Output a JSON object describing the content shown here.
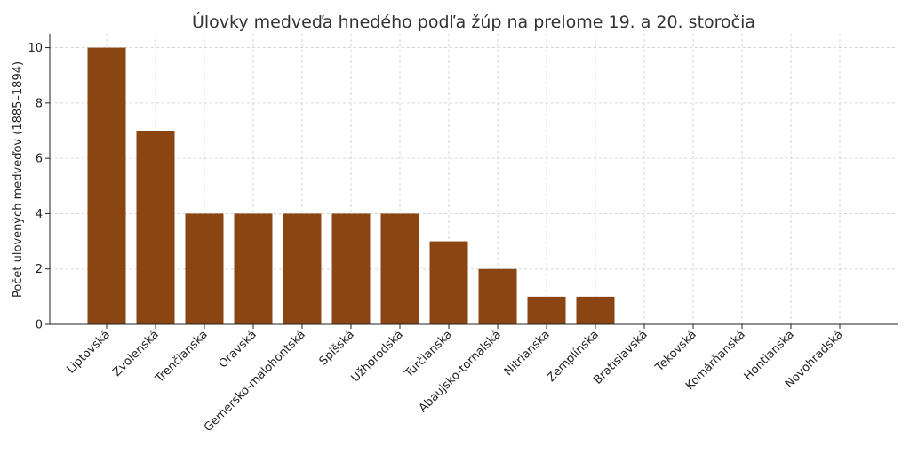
{
  "chart_data": {
    "type": "bar",
    "title": "Úlovky medveďa hnedého podľa žúp na prelome 19. a 20. storočia",
    "xlabel": "",
    "ylabel": "Počet ulovených medveďov (1885–1894)",
    "categories": [
      "Liptovská",
      "Zvolenská",
      "Trenčianska",
      "Oravská",
      "Gemersko-malohontská",
      "Spišská",
      "Užhorodská",
      "Turčianska",
      "Abaujsko-tornalská",
      "Nitrianska",
      "Zemplínska",
      "Bratislavská",
      "Tekovská",
      "Komárňanská",
      "Hontianska",
      "Novohradská"
    ],
    "values": [
      10,
      7,
      4,
      4,
      4,
      4,
      4,
      3,
      2,
      1,
      1,
      0,
      0,
      0,
      0,
      0
    ],
    "ylim": [
      0,
      10.5
    ],
    "yticks": [
      0,
      2,
      4,
      6,
      8,
      10
    ],
    "grid": true,
    "bar_color": "#8B4513"
  }
}
